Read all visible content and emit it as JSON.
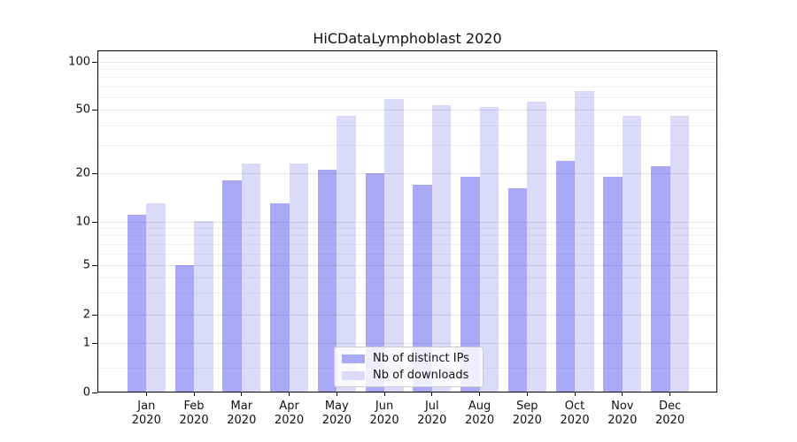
{
  "chart_data": {
    "type": "bar",
    "title": "HiCDataLymphoblast 2020",
    "categories": [
      "Jan",
      "Feb",
      "Mar",
      "Apr",
      "May",
      "Jun",
      "Jul",
      "Aug",
      "Sep",
      "Oct",
      "Nov",
      "Dec"
    ],
    "category_year": "2020",
    "series": [
      {
        "name": "Nb of distinct IPs",
        "color": "#a9a9f7",
        "values": [
          11,
          5,
          18,
          13,
          21,
          20,
          17,
          19,
          16,
          24,
          19,
          22
        ]
      },
      {
        "name": "Nb of downloads",
        "color": "#dbdbf9",
        "values": [
          13,
          10,
          23,
          23,
          46,
          58,
          53,
          52,
          56,
          65,
          46,
          46
        ]
      }
    ],
    "yscale": "symlog",
    "ylim": [
      0,
      118
    ],
    "y_tick_labels": [
      "100",
      "50",
      "20",
      "10",
      "5",
      "2",
      "1",
      "0"
    ],
    "y_tick_values": [
      100,
      50,
      20,
      10,
      5,
      2,
      1,
      0
    ],
    "grid": true,
    "legend_position": "lower center"
  }
}
